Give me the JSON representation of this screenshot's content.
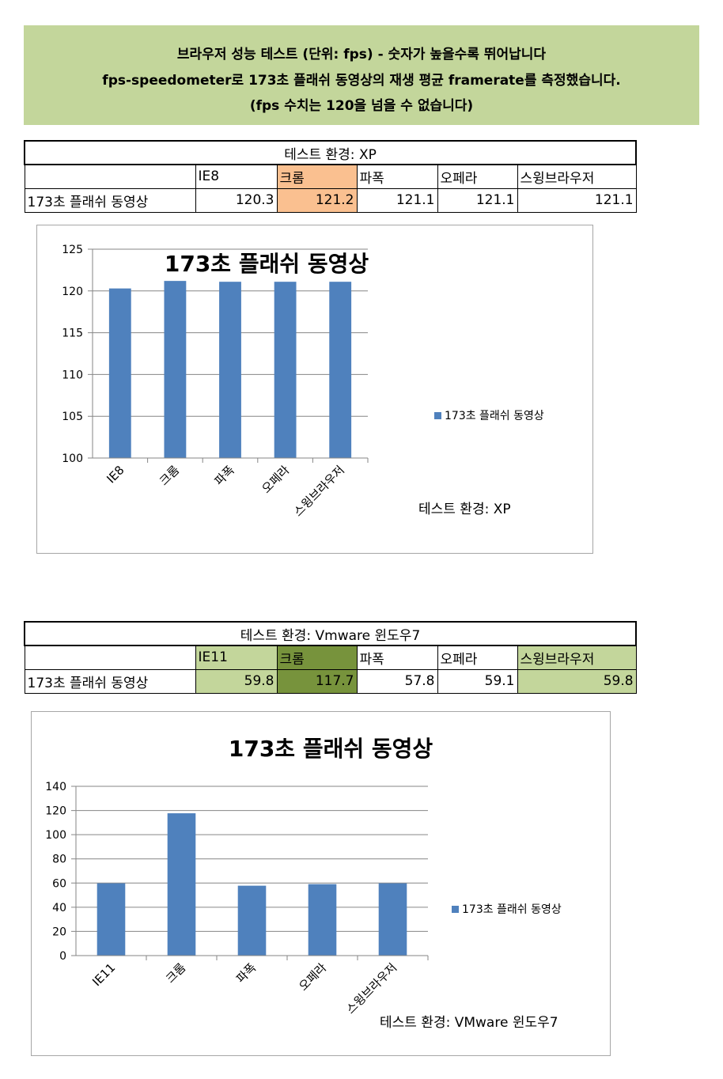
{
  "header": {
    "line1": "브라우저 성능 테스트 (단위: fps) - 숫자가 높을수록 뛰어납니다",
    "line2": "fps-speedometer로 173초 플래쉬 동영상의 재생 평균 framerate를 측정했습니다.",
    "line3": "(fps 수치는 120을 넘을 수 없습니다)"
  },
  "table_xp": {
    "title": "테스트 환경: XP",
    "browsers": [
      "IE8",
      "크롬",
      "파폭",
      "오페라",
      "스윙브라우저"
    ],
    "row_label": "173초 플래쉬 동영상",
    "values": [
      "120.3",
      "121.2",
      "121.1",
      "121.1",
      "121.1"
    ]
  },
  "table_win7": {
    "title": "테스트 환경: Vmware 윈도우7",
    "browsers": [
      "IE11",
      "크롬",
      "파폭",
      "오페라",
      "스윙브라우저"
    ],
    "row_label": "173초 플래쉬 동영상",
    "values": [
      "59.8",
      "117.7",
      "57.8",
      "59.1",
      "59.8"
    ]
  },
  "colors": {
    "banner": "#c3d69b",
    "bar": "#4f81bd",
    "highlight_orange": "#fac090",
    "highlight_light_green": "#c3d69b",
    "highlight_dark_green": "#77933c"
  },
  "chart_data": [
    {
      "type": "bar",
      "title": "173초 플래쉬 동영상",
      "categories": [
        "IE8",
        "크롬",
        "파폭",
        "오페라",
        "스윙브라우저"
      ],
      "series": [
        {
          "name": "173초 플래쉬 동영상",
          "values": [
            120.3,
            121.2,
            121.1,
            121.1,
            121.1
          ]
        }
      ],
      "ylim": [
        100,
        125
      ],
      "yticks": [
        100,
        105,
        110,
        115,
        120,
        125
      ],
      "grid": true,
      "legend": "right",
      "annotation": "테스트 환경: XP"
    },
    {
      "type": "bar",
      "title": "173초 플래쉬 동영상",
      "categories": [
        "IE11",
        "크롬",
        "파폭",
        "오페라",
        "스윙브라우저"
      ],
      "series": [
        {
          "name": "173초 플래쉬 동영상",
          "values": [
            59.8,
            117.7,
            57.8,
            59.1,
            59.8
          ]
        }
      ],
      "ylim": [
        0,
        140
      ],
      "yticks": [
        0,
        20,
        40,
        60,
        80,
        100,
        120,
        140
      ],
      "grid": true,
      "legend": "right",
      "annotation": "테스트 환경: VMware 윈도우7"
    }
  ]
}
